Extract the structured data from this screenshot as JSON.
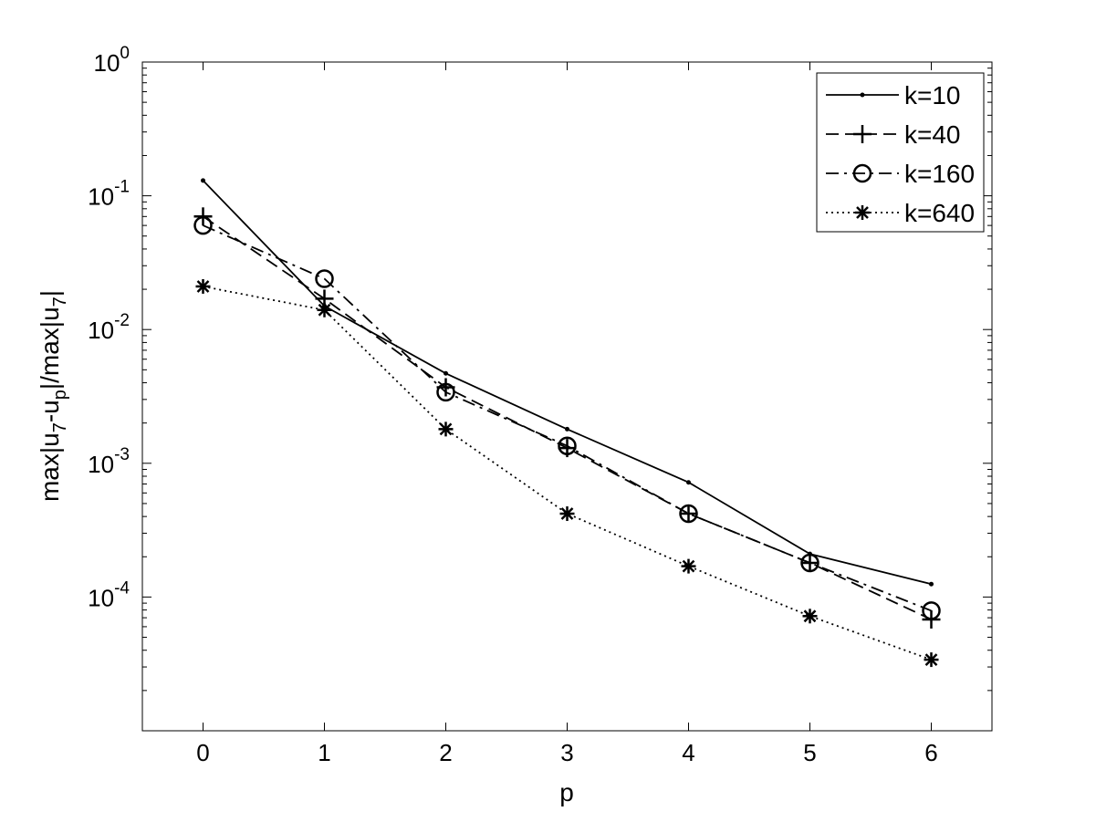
{
  "chart_data": {
    "type": "line",
    "title": "",
    "xlabel": "p",
    "ylabel_parts": {
      "main": "max|u",
      "sub1": "7",
      "mid": "-u",
      "sub2": "p",
      "mid2": "|/max|u",
      "sub3": "7",
      "end": "|"
    },
    "x": [
      0,
      1,
      2,
      3,
      4,
      5,
      6
    ],
    "xlim": [
      -0.5,
      6.5
    ],
    "ylim": [
      1e-05,
      1
    ],
    "yscale": "log",
    "xticks": [
      0,
      1,
      2,
      3,
      4,
      5,
      6
    ],
    "xtick_labels": [
      "0",
      "1",
      "2",
      "3",
      "4",
      "5",
      "6"
    ],
    "ytick_values": [
      0.0001,
      0.001,
      0.01,
      0.1,
      1
    ],
    "ytick_labels": [
      {
        "base": "10",
        "exp": "-4"
      },
      {
        "base": "10",
        "exp": "-3"
      },
      {
        "base": "10",
        "exp": "-2"
      },
      {
        "base": "10",
        "exp": "-1"
      },
      {
        "base": "10",
        "exp": "0"
      }
    ],
    "grid": false,
    "legend_position": "top-right",
    "series": [
      {
        "name": "k=10",
        "line": "solid",
        "marker": "dot",
        "values": [
          0.13,
          0.015,
          0.0047,
          0.0018,
          0.00072,
          0.00021,
          0.000125
        ]
      },
      {
        "name": "k=40",
        "line": "dashed",
        "marker": "plus",
        "values": [
          0.07,
          0.017,
          0.0037,
          0.0013,
          0.00042,
          0.00018,
          6.8e-05
        ]
      },
      {
        "name": "k=160",
        "line": "dashdot",
        "marker": "circle",
        "values": [
          0.06,
          0.024,
          0.0034,
          0.00135,
          0.00042,
          0.00018,
          7.9e-05
        ]
      },
      {
        "name": "k=640",
        "line": "dotted",
        "marker": "star",
        "values": [
          0.021,
          0.014,
          0.0018,
          0.00042,
          0.00017,
          7.2e-05,
          3.4e-05
        ]
      }
    ]
  }
}
